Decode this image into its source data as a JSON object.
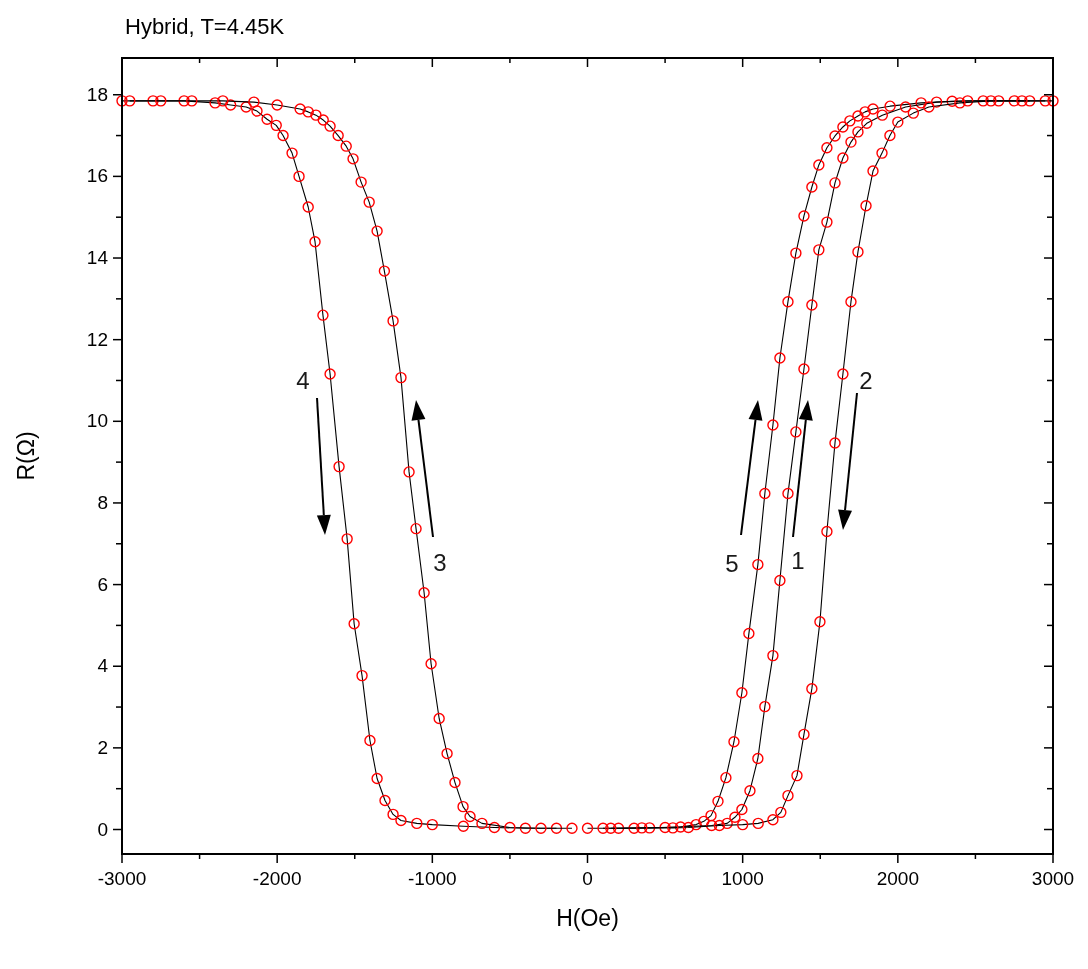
{
  "chart_data": {
    "type": "line",
    "title": "Hybrid, T=4.45K",
    "xlabel": "H(Oe)",
    "ylabel": "R(Ω)",
    "marker": "circle",
    "line_style": "solid",
    "xlim": [
      -3000,
      3000
    ],
    "ylim": [
      -0.6,
      18.9
    ],
    "xticks": [
      -3000,
      {
        "value": -2500,
        "label": null
      },
      -2000,
      {
        "value": -1500,
        "label": null
      },
      -1000,
      {
        "value": -500,
        "label": null
      },
      0,
      {
        "value": 500,
        "label": null
      },
      1000,
      {
        "value": 1500,
        "label": null
      },
      2000,
      {
        "value": 2500,
        "label": null
      },
      3000
    ],
    "yticks": [
      0,
      {
        "value": 1,
        "label": null
      },
      2,
      {
        "value": 3,
        "label": null
      },
      4,
      {
        "value": 5,
        "label": null
      },
      6,
      {
        "value": 7,
        "label": null
      },
      8,
      {
        "value": 9,
        "label": null
      },
      10,
      {
        "value": 11,
        "label": null
      },
      12,
      {
        "value": 13,
        "label": null
      },
      14,
      {
        "value": 15,
        "label": null
      },
      16,
      {
        "value": 17,
        "label": null
      },
      18
    ],
    "series": [
      {
        "color": "#ff0000",
        "x": [
          -3000,
          -2800,
          -2600,
          -2400,
          -2300,
          -2200,
          -2130,
          -2065,
          -2006,
          -1962,
          -1904,
          -1859,
          -1800,
          -1756,
          -1705,
          -1659,
          -1601,
          -1549,
          -1504,
          -1453,
          -1402,
          -1356,
          -1305,
          -1253,
          -1202,
          -1100,
          -1000,
          -800,
          -600,
          -400,
          -200
        ],
        "values": [
          17.85,
          17.85,
          17.85,
          17.8,
          17.75,
          17.7,
          17.6,
          17.4,
          17.25,
          17.0,
          16.57,
          16.0,
          15.25,
          14.4,
          12.6,
          11.16,
          8.89,
          7.12,
          5.04,
          3.77,
          2.18,
          1.25,
          0.71,
          0.37,
          0.22,
          0.15,
          0.12,
          0.08,
          0.05,
          0.03,
          0.03
        ]
      },
      {
        "color": "#ff0000",
        "x": [
          -2950,
          -2750,
          -2550,
          -2350,
          -2150,
          -2000,
          -1852,
          -1800,
          -1750,
          -1703,
          -1659,
          -1607,
          -1555,
          -1511,
          -1459,
          -1407,
          -1356,
          -1309,
          -1253,
          -1202,
          -1150,
          -1105,
          -1053,
          -1008,
          -956,
          -905,
          -854,
          -802,
          -757,
          -680,
          -500,
          -300,
          -100
        ],
        "values": [
          17.85,
          17.85,
          17.85,
          17.85,
          17.82,
          17.75,
          17.65,
          17.58,
          17.5,
          17.38,
          17.23,
          17.0,
          16.74,
          16.43,
          15.86,
          15.37,
          14.66,
          13.68,
          12.46,
          11.07,
          8.76,
          7.37,
          5.8,
          4.06,
          2.72,
          1.86,
          1.15,
          0.56,
          0.32,
          0.15,
          0.05,
          0.03,
          0.03
        ]
      },
      {
        "color": "#ff0000",
        "x": [
          0,
          200,
          400,
          600,
          700,
          750,
          796,
          841,
          892,
          944,
          995,
          1040,
          1098,
          1143,
          1195,
          1240,
          1292,
          1343,
          1395,
          1446,
          1491,
          1543,
          1595,
          1646,
          1691,
          1743,
          1789,
          1840,
          1950,
          2150,
          2350,
          2550,
          2750,
          2950
        ],
        "values": [
          0.03,
          0.03,
          0.04,
          0.06,
          0.12,
          0.2,
          0.34,
          0.69,
          1.27,
          2.15,
          3.35,
          4.8,
          6.49,
          8.23,
          9.91,
          11.55,
          12.93,
          14.12,
          15.03,
          15.74,
          16.28,
          16.7,
          16.99,
          17.21,
          17.36,
          17.48,
          17.58,
          17.65,
          17.72,
          17.8,
          17.84,
          17.85,
          17.85,
          17.85
        ]
      },
      {
        "color": "#ff0000",
        "x": [
          100,
          300,
          500,
          800,
          900,
          950,
          995,
          1047,
          1098,
          1143,
          1195,
          1240,
          1292,
          1343,
          1395,
          1446,
          1491,
          1543,
          1595,
          1646,
          1698,
          1743,
          1800,
          1900,
          2050,
          2250,
          2450,
          2650,
          2850
        ],
        "values": [
          0.03,
          0.03,
          0.05,
          0.1,
          0.15,
          0.3,
          0.49,
          0.95,
          1.74,
          3.01,
          4.26,
          6.1,
          8.23,
          9.74,
          11.28,
          12.85,
          14.2,
          14.88,
          15.84,
          16.45,
          16.84,
          17.09,
          17.3,
          17.5,
          17.7,
          17.82,
          17.85,
          17.85,
          17.85
        ]
      },
      {
        "color": "#ff0000",
        "x": [
          150,
          350,
          550,
          650,
          850,
          1000,
          1100,
          1195,
          1246,
          1292,
          1350,
          1395,
          1446,
          1498,
          1543,
          1595,
          1646,
          1698,
          1743,
          1795,
          1840,
          1898,
          1949,
          2000,
          2100,
          2200,
          2400,
          2600,
          2800,
          3000
        ],
        "values": [
          0.03,
          0.04,
          0.04,
          0.05,
          0.1,
          0.12,
          0.15,
          0.24,
          0.42,
          0.83,
          1.32,
          2.33,
          3.45,
          5.09,
          7.3,
          9.47,
          11.16,
          12.93,
          14.15,
          15.28,
          16.13,
          16.57,
          17.0,
          17.33,
          17.55,
          17.7,
          17.8,
          17.85,
          17.85,
          17.85
        ]
      }
    ],
    "annotations": [
      "4",
      "3",
      "5",
      "1",
      "2"
    ]
  }
}
